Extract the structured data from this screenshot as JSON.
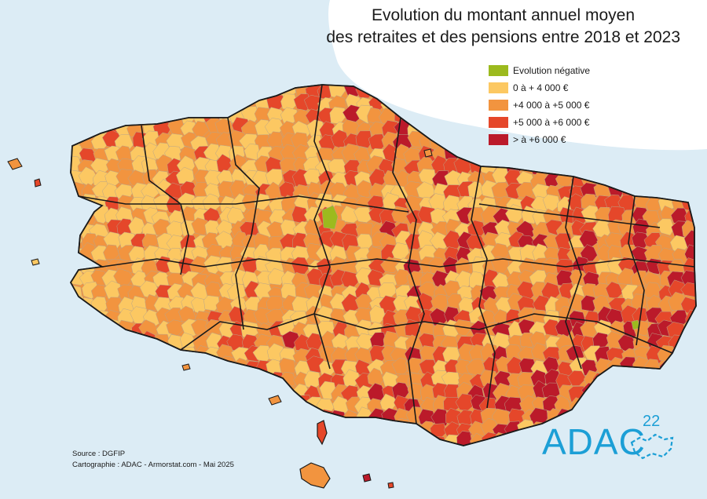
{
  "title": {
    "line1": "Evolution du montant annuel moyen",
    "line2": "des retraites et des pensions entre 2018 et 2023"
  },
  "legend": {
    "items": [
      {
        "label": "Evolution négative",
        "color": "#9cba1e"
      },
      {
        "label": "0 à + 4 000 €",
        "color": "#fcc862"
      },
      {
        "label": "+4 000 à +5 000 €",
        "color": "#f2943f"
      },
      {
        "label": "+5 000 à +6 000 €",
        "color": "#e5472a"
      },
      {
        "label": "> à +6 000 €",
        "color": "#bb1a2a"
      }
    ]
  },
  "credits": {
    "source": "Source : DGFIP",
    "cartography": "Cartographie : ADAC - Armorstat.com - Mai 2025"
  },
  "logo": {
    "text": "ADAC",
    "number": "22",
    "color": "#1c9fd6"
  },
  "colors": {
    "sea": "#dcecf5",
    "land_bg": "#f2943f",
    "boundary": "#1a1a1a",
    "commune_line": "#b9a58a"
  }
}
